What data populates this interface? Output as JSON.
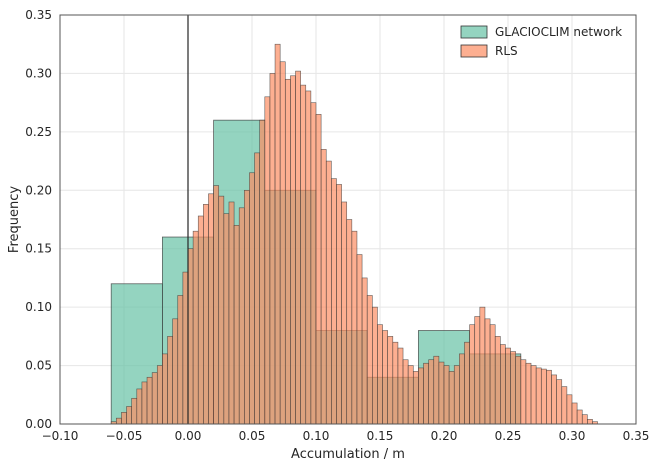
{
  "chart_data": {
    "type": "histogram",
    "title": "",
    "xlabel": "Accumulation / m",
    "ylabel": "Frequency",
    "xlim": [
      -0.1,
      0.35
    ],
    "ylim": [
      0.0,
      0.35
    ],
    "xticks": [
      "−0.10",
      "−0.05",
      "0.00",
      "0.05",
      "0.10",
      "0.15",
      "0.20",
      "0.25",
      "0.30",
      "0.35"
    ],
    "yticks": [
      "0.00",
      "0.05",
      "0.10",
      "0.15",
      "0.20",
      "0.25",
      "0.30",
      "0.35"
    ],
    "xtick_values": [
      -0.1,
      -0.05,
      0.0,
      0.05,
      0.1,
      0.15,
      0.2,
      0.25,
      0.3,
      0.35
    ],
    "ytick_values": [
      0.0,
      0.05,
      0.1,
      0.15,
      0.2,
      0.25,
      0.3,
      0.35
    ],
    "grid": true,
    "legend_position": "top-right",
    "vertical_line_x": 0.0,
    "series": [
      {
        "name": "GLACIOCLIM network",
        "color": "#66c2a5",
        "bin_width": 0.04,
        "bin_starts": [
          -0.06,
          -0.02,
          0.02,
          0.06,
          0.1,
          0.14,
          0.18,
          0.22
        ],
        "values": [
          0.12,
          0.16,
          0.26,
          0.2,
          0.08,
          0.04,
          0.08,
          0.06
        ]
      },
      {
        "name": "RLS",
        "color": "#fc8d62",
        "bin_width": 0.004,
        "bin_start": -0.06,
        "values": [
          0.002,
          0.005,
          0.01,
          0.015,
          0.022,
          0.03,
          0.036,
          0.04,
          0.044,
          0.05,
          0.06,
          0.075,
          0.09,
          0.11,
          0.13,
          0.15,
          0.165,
          0.178,
          0.188,
          0.197,
          0.204,
          0.195,
          0.18,
          0.19,
          0.17,
          0.185,
          0.2,
          0.215,
          0.232,
          0.26,
          0.28,
          0.3,
          0.325,
          0.31,
          0.295,
          0.298,
          0.302,
          0.29,
          0.285,
          0.275,
          0.265,
          0.235,
          0.225,
          0.21,
          0.205,
          0.19,
          0.175,
          0.165,
          0.145,
          0.125,
          0.11,
          0.1,
          0.085,
          0.08,
          0.075,
          0.07,
          0.065,
          0.055,
          0.05,
          0.045,
          0.048,
          0.052,
          0.055,
          0.058,
          0.053,
          0.05,
          0.045,
          0.05,
          0.06,
          0.07,
          0.085,
          0.092,
          0.1,
          0.09,
          0.085,
          0.075,
          0.068,
          0.065,
          0.062,
          0.058,
          0.055,
          0.052,
          0.05,
          0.048,
          0.047,
          0.046,
          0.042,
          0.038,
          0.032,
          0.025,
          0.018,
          0.012,
          0.008,
          0.004,
          0.002
        ]
      }
    ]
  }
}
